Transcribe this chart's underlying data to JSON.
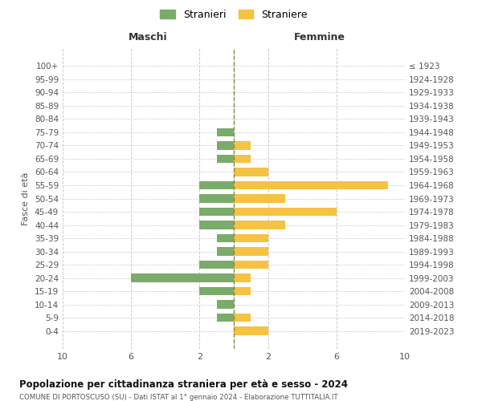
{
  "age_groups": [
    "0-4",
    "5-9",
    "10-14",
    "15-19",
    "20-24",
    "25-29",
    "30-34",
    "35-39",
    "40-44",
    "45-49",
    "50-54",
    "55-59",
    "60-64",
    "65-69",
    "70-74",
    "75-79",
    "80-84",
    "85-89",
    "90-94",
    "95-99",
    "100+"
  ],
  "birth_years": [
    "2019-2023",
    "2014-2018",
    "2009-2013",
    "2004-2008",
    "1999-2003",
    "1994-1998",
    "1989-1993",
    "1984-1988",
    "1979-1983",
    "1974-1978",
    "1969-1973",
    "1964-1968",
    "1959-1963",
    "1954-1958",
    "1949-1953",
    "1944-1948",
    "1939-1943",
    "1934-1938",
    "1929-1933",
    "1924-1928",
    "≤ 1923"
  ],
  "maschi": [
    0,
    1,
    1,
    2,
    6,
    2,
    1,
    1,
    2,
    2,
    2,
    2,
    0,
    1,
    1,
    1,
    0,
    0,
    0,
    0,
    0
  ],
  "femmine": [
    2,
    1,
    0,
    1,
    1,
    2,
    2,
    2,
    3,
    6,
    3,
    9,
    2,
    1,
    1,
    0,
    0,
    0,
    0,
    0,
    0
  ],
  "color_maschi": "#7aab6b",
  "color_femmine": "#f5c242",
  "title": "Popolazione per cittadinanza straniera per età e sesso - 2024",
  "subtitle": "COMUNE DI PORTOSCUSO (SU) - Dati ISTAT al 1° gennaio 2024 - Elaborazione TUTTITALIA.IT",
  "legend_maschi": "Stranieri",
  "legend_femmine": "Straniere",
  "xlabel_maschi": "Maschi",
  "xlabel_femmine": "Femmine",
  "ylabel": "Fasce di età",
  "xlim": 10,
  "background_color": "#ffffff",
  "grid_color": "#cccccc"
}
